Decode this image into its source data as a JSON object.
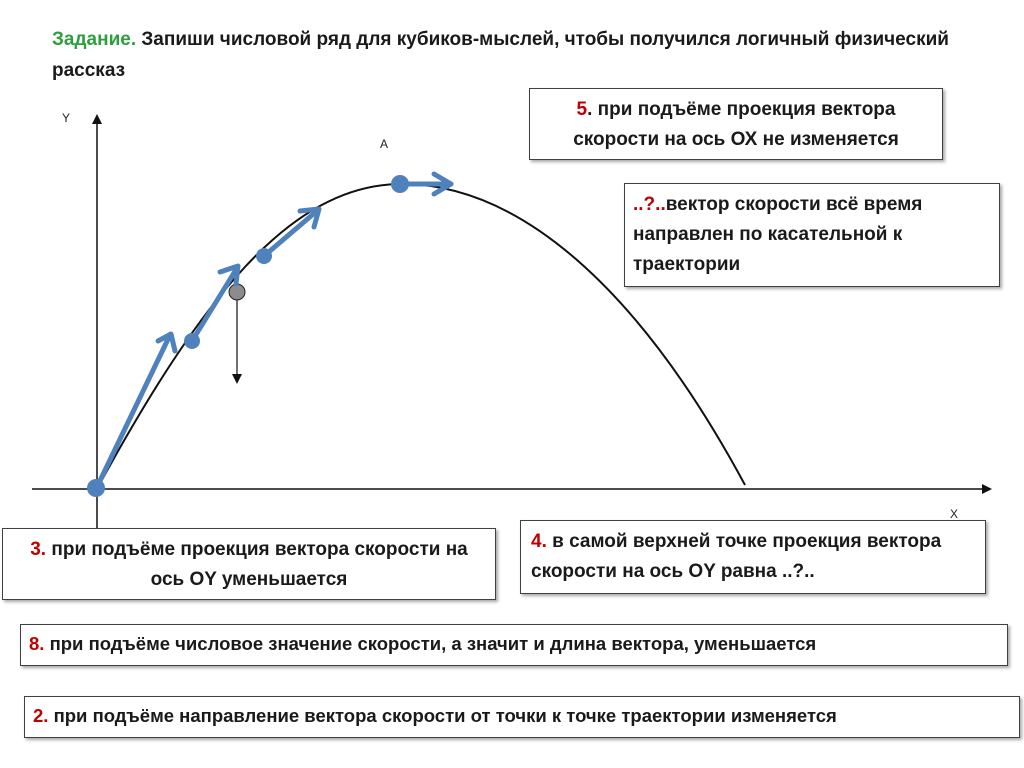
{
  "task": {
    "lead": "Задание.",
    "text": " Запиши числовой ряд для кубиков-мыслей, чтобы получился логичный физический рассказ"
  },
  "axes": {
    "y_label": "Y",
    "x_label": "X",
    "top_point_label": "А"
  },
  "cards": {
    "card5": {
      "num": "5",
      "text": ". при подъёме проекция вектора скорости на ось ОХ не изменяется"
    },
    "card_unknown": {
      "num": "..?..",
      "text": "вектор скорости всё время направлен по касательной к траектории"
    },
    "card3": {
      "num": "3.",
      "text": " при подъёме проекция вектора скорости на ось ОY уменьшается"
    },
    "card4": {
      "num": "4.",
      "text": " в самой верхней точке проекция вектора скорости на ось ОY равна ..?.."
    },
    "card8": {
      "num": "8.",
      "text": " при подъёме числовое значение скорости, а значит и длина вектора, уменьшается"
    },
    "card2": {
      "num": "2.",
      "text": " при подъёме направление вектора скорости от точки к точке траектории изменяется"
    }
  },
  "colors": {
    "accent_green": "#2e9e3e",
    "number_red": "#c00000",
    "vector_blue": "#4f81bd"
  }
}
